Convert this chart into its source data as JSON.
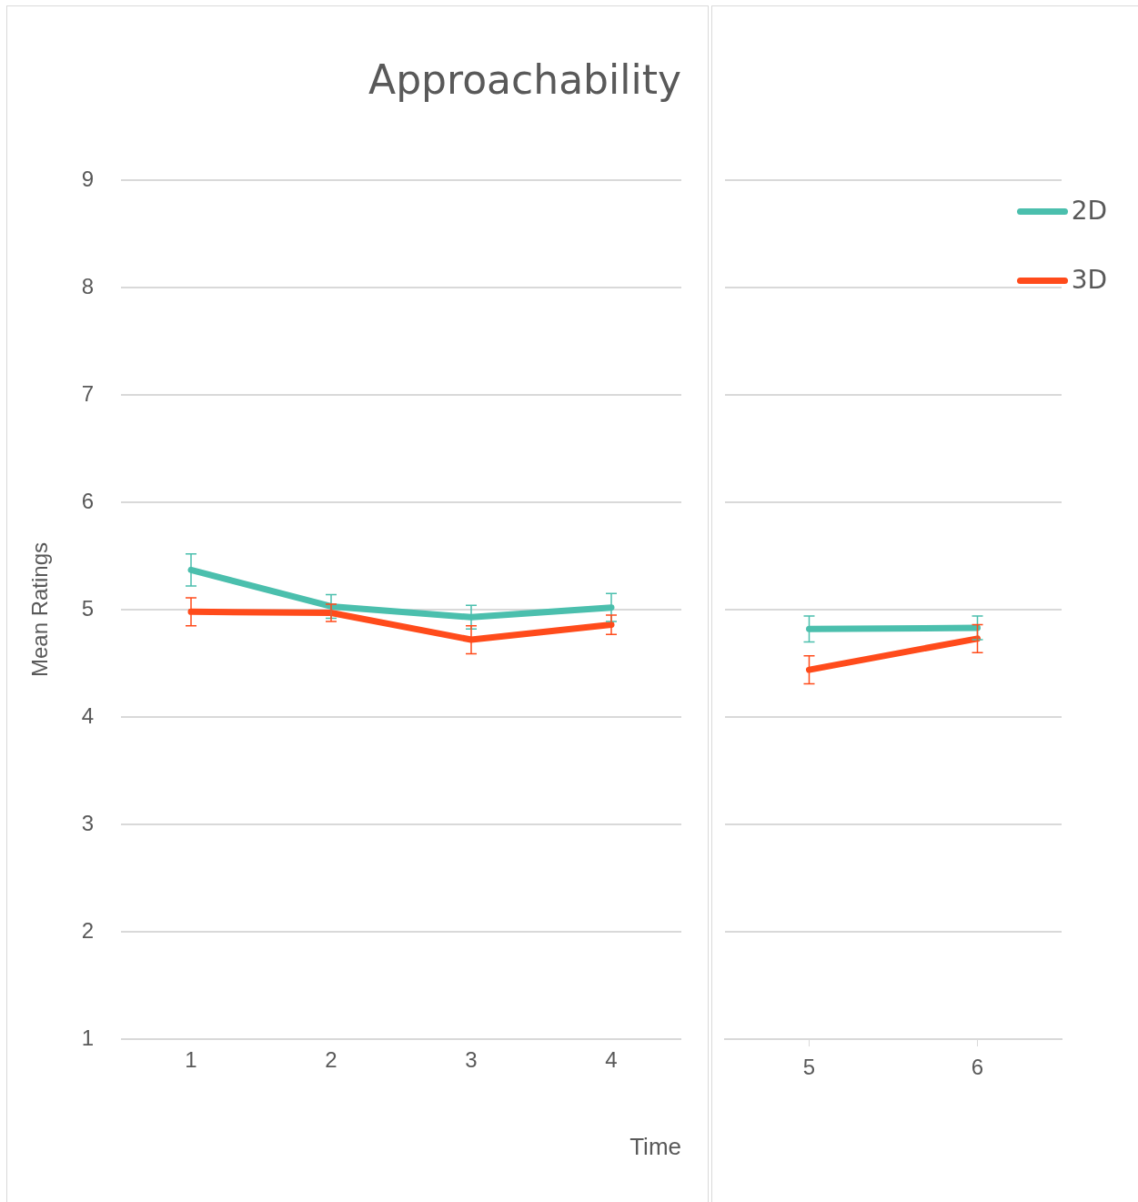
{
  "chart_data": [
    {
      "type": "line",
      "title": "Approachability",
      "xlabel": "Time",
      "ylabel": "Mean Ratings",
      "categories": [
        "1",
        "2",
        "3",
        "4"
      ],
      "series": [
        {
          "color": "#4bbfad",
          "values": [
            5.37,
            5.03,
            4.93,
            5.02
          ],
          "errors": [
            0.15,
            0.11,
            0.11,
            0.13
          ]
        },
        {
          "color": "#ff4b1b",
          "values": [
            4.98,
            4.97,
            4.72,
            4.86
          ],
          "errors": [
            0.13,
            0.08,
            0.13,
            0.09
          ]
        }
      ],
      "ylim": [
        1,
        9
      ],
      "yticks": [
        1,
        2,
        3,
        4,
        5,
        6,
        7,
        8,
        9
      ],
      "grid": "y",
      "legend": false,
      "line_style": "solid"
    },
    {
      "type": "line",
      "categories": [
        "5",
        "6"
      ],
      "series": [
        {
          "name": "2D",
          "color": "#4bbfad",
          "values": [
            4.82,
            4.83
          ],
          "errors": [
            0.12,
            0.11
          ]
        },
        {
          "name": "3D",
          "color": "#ff4b1b",
          "values": [
            4.44,
            4.73
          ],
          "errors": [
            0.13,
            0.13
          ]
        }
      ],
      "ylim": [
        1,
        9
      ],
      "yticks": [
        1,
        2,
        3,
        4,
        5,
        6,
        7,
        8,
        9
      ],
      "grid": "y",
      "legend": "top right",
      "tick_labels": "x",
      "line_style": "solid"
    }
  ]
}
